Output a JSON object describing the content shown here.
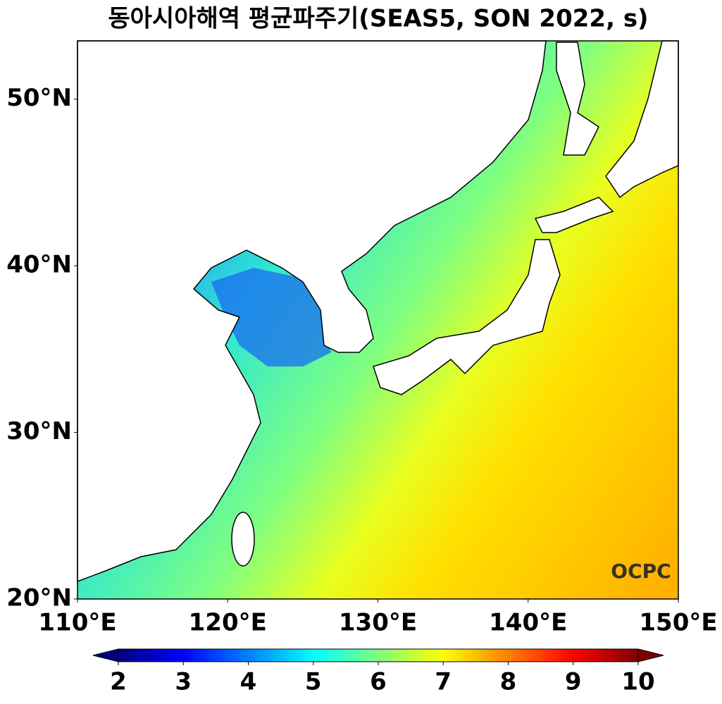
{
  "map": {
    "title": "동아시아해역 평균파주기(SEAS5, SON 2022, s)",
    "xlim": [
      110,
      150
    ],
    "ylim": [
      20,
      53.5
    ],
    "xticks": [
      {
        "value": 110,
        "label": "110°E"
      },
      {
        "value": 120,
        "label": "120°E"
      },
      {
        "value": 130,
        "label": "130°E"
      },
      {
        "value": 140,
        "label": "140°E"
      },
      {
        "value": 150,
        "label": "150°E"
      }
    ],
    "yticks": [
      {
        "value": 20,
        "label": "20°N"
      },
      {
        "value": 30,
        "label": "30°N"
      },
      {
        "value": 40,
        "label": "40°N"
      },
      {
        "value": 50,
        "label": "50°N"
      }
    ],
    "colorbar": {
      "lim": [
        2,
        10
      ],
      "ticks": [
        2,
        3,
        4,
        5,
        6,
        7,
        8,
        9,
        10
      ],
      "colormap": "jet"
    },
    "logo": "OCPC"
  }
}
